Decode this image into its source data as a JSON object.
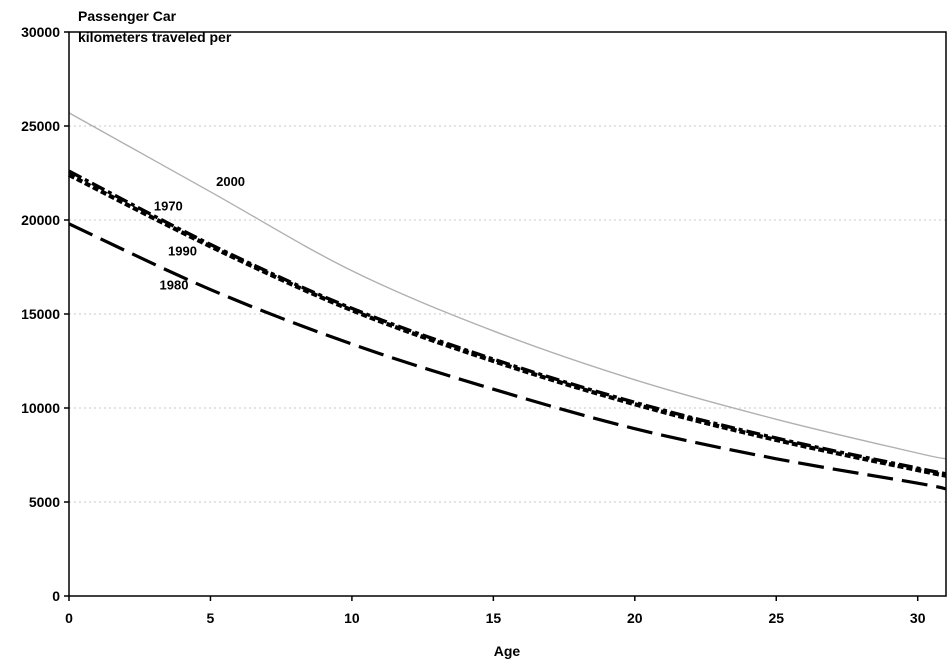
{
  "chart_data": {
    "type": "line",
    "title": "Passenger Car",
    "subtitle": "kilometers traveled per",
    "xlabel": "Age",
    "ylabel": "",
    "xlim": [
      0,
      31
    ],
    "ylim": [
      0,
      30000
    ],
    "xticks": [
      0,
      5,
      10,
      15,
      20,
      25,
      30
    ],
    "yticks": [
      0,
      5000,
      10000,
      15000,
      20000,
      25000,
      30000
    ],
    "grid": "horizontal dotted",
    "legend": "none",
    "x": [
      0,
      5,
      10,
      15,
      20,
      25,
      30,
      31
    ],
    "series": [
      {
        "name": "2000",
        "color": "#b0b0b0",
        "style": "solid-thin",
        "values": [
          25700,
          21500,
          17300,
          14100,
          11500,
          9400,
          7600,
          7300
        ]
      },
      {
        "name": "1970",
        "color": "#000000",
        "style": "dash-dot",
        "values": [
          22600,
          18700,
          15300,
          12600,
          10300,
          8400,
          6800,
          6500
        ]
      },
      {
        "name": "1990",
        "color": "#000000",
        "style": "dotted-heavy",
        "values": [
          22400,
          18600,
          15200,
          12500,
          10200,
          8300,
          6700,
          6400
        ]
      },
      {
        "name": "1980",
        "color": "#000000",
        "style": "long-dash",
        "values": [
          19800,
          16300,
          13400,
          11000,
          8900,
          7300,
          6000,
          5700
        ]
      }
    ],
    "series_label_positions": {
      "2000": [
        5.2,
        21800
      ],
      "1970": [
        3.0,
        20500
      ],
      "1990": [
        3.5,
        18100
      ],
      "1980": [
        3.2,
        16300
      ]
    }
  }
}
